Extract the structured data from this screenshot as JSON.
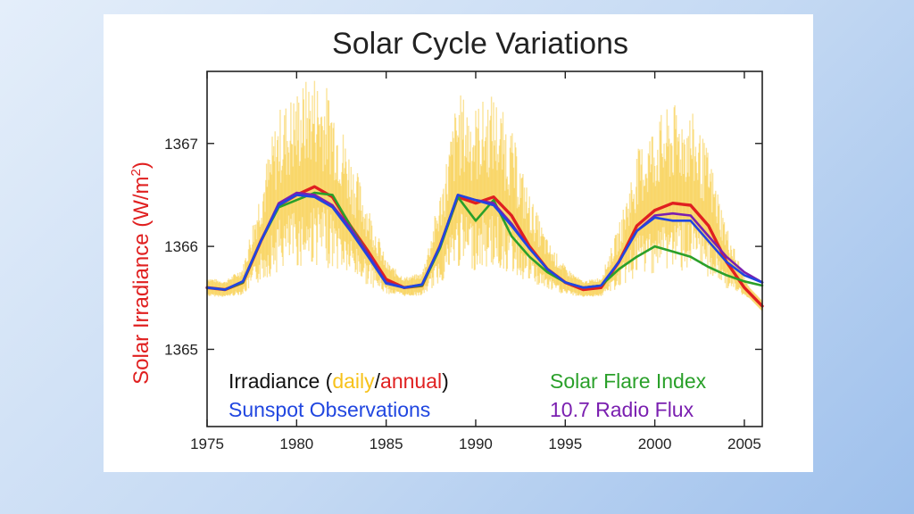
{
  "chart_data": {
    "type": "line",
    "title": "Solar Cycle Variations",
    "ylabel": "Solar Irradiance (W/m",
    "ylabel_sup": "2",
    "ylabel_close": ")",
    "xlim": [
      1975,
      2006
    ],
    "ylim": [
      1364.25,
      1367.7
    ],
    "x_ticks": [
      1975,
      1980,
      1985,
      1990,
      1995,
      2000,
      2005
    ],
    "y_ticks": [
      1365,
      1366,
      1367
    ],
    "grid": false,
    "legend": {
      "irradiance_prefix": "Irradiance (",
      "daily": "daily",
      "slash": "/",
      "annual": "annual",
      "irradiance_suffix": ")",
      "sunspot": "Sunspot Observations",
      "flare": "Solar Flare Index",
      "radio": "10.7 Radio Flux"
    },
    "series": [
      {
        "key": "annual",
        "color": "#e02020",
        "points": [
          [
            1975,
            1365.6
          ],
          [
            1976,
            1365.58
          ],
          [
            1977,
            1365.65
          ],
          [
            1978,
            1366.05
          ],
          [
            1979,
            1366.4
          ],
          [
            1980,
            1366.5
          ],
          [
            1981,
            1366.58
          ],
          [
            1982,
            1366.48
          ],
          [
            1983,
            1366.2
          ],
          [
            1984,
            1365.95
          ],
          [
            1985,
            1365.68
          ],
          [
            1986,
            1365.6
          ],
          [
            1987,
            1365.62
          ],
          [
            1988,
            1366.0
          ],
          [
            1989,
            1366.48
          ],
          [
            1990,
            1366.42
          ],
          [
            1991,
            1366.48
          ],
          [
            1992,
            1366.3
          ],
          [
            1993,
            1366.0
          ],
          [
            1994,
            1365.78
          ],
          [
            1995,
            1365.65
          ],
          [
            1996,
            1365.58
          ],
          [
            1997,
            1365.6
          ],
          [
            1998,
            1365.85
          ],
          [
            1999,
            1366.2
          ],
          [
            2000,
            1366.35
          ],
          [
            2001,
            1366.42
          ],
          [
            2002,
            1366.4
          ],
          [
            2003,
            1366.2
          ],
          [
            2004,
            1365.85
          ],
          [
            2005,
            1365.6
          ],
          [
            2006,
            1365.42
          ]
        ]
      },
      {
        "key": "flare",
        "color": "#2aa02a",
        "points": [
          [
            1975,
            1365.6
          ],
          [
            1976,
            1365.58
          ],
          [
            1977,
            1365.65
          ],
          [
            1978,
            1366.05
          ],
          [
            1979,
            1366.38
          ],
          [
            1980,
            1366.45
          ],
          [
            1981,
            1366.52
          ],
          [
            1982,
            1366.5
          ],
          [
            1983,
            1366.2
          ],
          [
            1984,
            1365.92
          ],
          [
            1985,
            1365.65
          ],
          [
            1986,
            1365.6
          ],
          [
            1987,
            1365.62
          ],
          [
            1988,
            1365.98
          ],
          [
            1989,
            1366.48
          ],
          [
            1990,
            1366.25
          ],
          [
            1991,
            1366.45
          ],
          [
            1992,
            1366.1
          ],
          [
            1993,
            1365.9
          ],
          [
            1994,
            1365.75
          ],
          [
            1995,
            1365.65
          ],
          [
            1996,
            1365.6
          ],
          [
            1997,
            1365.62
          ],
          [
            1998,
            1365.78
          ],
          [
            1999,
            1365.9
          ],
          [
            2000,
            1366.0
          ],
          [
            2001,
            1365.95
          ],
          [
            2002,
            1365.9
          ],
          [
            2003,
            1365.8
          ],
          [
            2004,
            1365.72
          ],
          [
            2005,
            1365.66
          ],
          [
            2006,
            1365.62
          ]
        ]
      },
      {
        "key": "radio",
        "color": "#7a1fb0",
        "points": [
          [
            1975,
            1365.6
          ],
          [
            1976,
            1365.58
          ],
          [
            1977,
            1365.66
          ],
          [
            1978,
            1366.05
          ],
          [
            1979,
            1366.42
          ],
          [
            1980,
            1366.52
          ],
          [
            1981,
            1366.5
          ],
          [
            1982,
            1366.4
          ],
          [
            1983,
            1366.18
          ],
          [
            1984,
            1365.92
          ],
          [
            1985,
            1365.65
          ],
          [
            1986,
            1365.6
          ],
          [
            1987,
            1365.63
          ],
          [
            1988,
            1366.0
          ],
          [
            1989,
            1366.5
          ],
          [
            1990,
            1366.45
          ],
          [
            1991,
            1366.42
          ],
          [
            1992,
            1366.22
          ],
          [
            1993,
            1365.98
          ],
          [
            1994,
            1365.78
          ],
          [
            1995,
            1365.65
          ],
          [
            1996,
            1365.6
          ],
          [
            1997,
            1365.62
          ],
          [
            1998,
            1365.85
          ],
          [
            1999,
            1366.15
          ],
          [
            2000,
            1366.3
          ],
          [
            2001,
            1366.32
          ],
          [
            2002,
            1366.3
          ],
          [
            2003,
            1366.1
          ],
          [
            2004,
            1365.9
          ],
          [
            2005,
            1365.75
          ],
          [
            2006,
            1365.65
          ]
        ]
      },
      {
        "key": "sunspot",
        "color": "#2046e0",
        "points": [
          [
            1975,
            1365.6
          ],
          [
            1976,
            1365.58
          ],
          [
            1977,
            1365.66
          ],
          [
            1978,
            1366.05
          ],
          [
            1979,
            1366.4
          ],
          [
            1980,
            1366.5
          ],
          [
            1981,
            1366.48
          ],
          [
            1982,
            1366.38
          ],
          [
            1983,
            1366.15
          ],
          [
            1984,
            1365.9
          ],
          [
            1985,
            1365.64
          ],
          [
            1986,
            1365.6
          ],
          [
            1987,
            1365.63
          ],
          [
            1988,
            1366.0
          ],
          [
            1989,
            1366.5
          ],
          [
            1990,
            1366.45
          ],
          [
            1991,
            1366.4
          ],
          [
            1992,
            1366.2
          ],
          [
            1993,
            1365.98
          ],
          [
            1994,
            1365.78
          ],
          [
            1995,
            1365.65
          ],
          [
            1996,
            1365.6
          ],
          [
            1997,
            1365.62
          ],
          [
            1998,
            1365.85
          ],
          [
            1999,
            1366.15
          ],
          [
            2000,
            1366.28
          ],
          [
            2001,
            1366.25
          ],
          [
            2002,
            1366.25
          ],
          [
            2003,
            1366.05
          ],
          [
            2004,
            1365.85
          ],
          [
            2005,
            1365.72
          ],
          [
            2006,
            1365.65
          ]
        ]
      }
    ]
  },
  "colors": {
    "daily": "#f7c21a",
    "annual": "#e02020",
    "sunspot": "#2046e0",
    "flare": "#2aa02a",
    "radio": "#7a1fb0",
    "axis": "#222222"
  }
}
